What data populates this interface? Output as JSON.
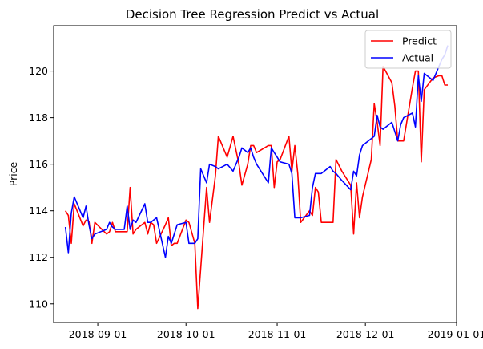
{
  "chart_data": {
    "type": "line",
    "title": "Decision Tree Regression Predict vs Actual",
    "xlabel": "",
    "ylabel": "Price",
    "x_start": "2018-08-21",
    "xlim": [
      "2018-08-17",
      "2019-01-01"
    ],
    "ylim": [
      109.2,
      121.95
    ],
    "x_ticks": [
      {
        "date": "2018-09-01",
        "label": "2018-09-01"
      },
      {
        "date": "2018-10-01",
        "label": "2018-10-01"
      },
      {
        "date": "2018-11-01",
        "label": "2018-11-01"
      },
      {
        "date": "2018-12-01",
        "label": "2018-12-01"
      },
      {
        "date": "2019-01-01",
        "label": "2019-01-01"
      }
    ],
    "y_ticks": [
      {
        "value": 110,
        "label": "110"
      },
      {
        "value": 112,
        "label": "112"
      },
      {
        "value": 114,
        "label": "114"
      },
      {
        "value": 116,
        "label": "116"
      },
      {
        "value": 118,
        "label": "118"
      },
      {
        "value": 120,
        "label": "120"
      }
    ],
    "grid": false,
    "legend_position": "top-right",
    "series": [
      {
        "name": "Predict",
        "color": "#ff0000",
        "points": [
          [
            "2018-08-21",
            114.0
          ],
          [
            "2018-08-22",
            113.8
          ],
          [
            "2018-08-23",
            112.6
          ],
          [
            "2018-08-24",
            114.3
          ],
          [
            "2018-08-27",
            113.35
          ],
          [
            "2018-08-28",
            113.6
          ],
          [
            "2018-08-29",
            113.55
          ],
          [
            "2018-08-30",
            112.6
          ],
          [
            "2018-08-31",
            113.5
          ],
          [
            "2018-09-04",
            113.0
          ],
          [
            "2018-09-05",
            113.1
          ],
          [
            "2018-09-06",
            113.5
          ],
          [
            "2018-09-07",
            113.1
          ],
          [
            "2018-09-10",
            113.1
          ],
          [
            "2018-09-11",
            113.1
          ],
          [
            "2018-09-12",
            115.0
          ],
          [
            "2018-09-13",
            113.0
          ],
          [
            "2018-09-14",
            113.2
          ],
          [
            "2018-09-17",
            113.5
          ],
          [
            "2018-09-18",
            113.0
          ],
          [
            "2018-09-19",
            113.5
          ],
          [
            "2018-09-20",
            113.4
          ],
          [
            "2018-09-21",
            112.6
          ],
          [
            "2018-09-24",
            113.4
          ],
          [
            "2018-09-25",
            113.7
          ],
          [
            "2018-09-26",
            112.5
          ],
          [
            "2018-09-27",
            112.6
          ],
          [
            "2018-09-28",
            112.6
          ],
          [
            "2018-10-01",
            113.6
          ],
          [
            "2018-10-02",
            113.5
          ],
          [
            "2018-10-04",
            112.6
          ],
          [
            "2018-10-05",
            109.8
          ],
          [
            "2018-10-08",
            115.0
          ],
          [
            "2018-10-09",
            113.5
          ],
          [
            "2018-10-11",
            115.5
          ],
          [
            "2018-10-12",
            117.2
          ],
          [
            "2018-10-15",
            116.3
          ],
          [
            "2018-10-17",
            117.2
          ],
          [
            "2018-10-19",
            116.0
          ],
          [
            "2018-10-20",
            115.1
          ],
          [
            "2018-10-22",
            116.0
          ],
          [
            "2018-10-23",
            116.8
          ],
          [
            "2018-10-24",
            116.8
          ],
          [
            "2018-10-25",
            116.5
          ],
          [
            "2018-10-29",
            116.8
          ],
          [
            "2018-10-30",
            116.8
          ],
          [
            "2018-10-31",
            115.0
          ],
          [
            "2018-11-01",
            116.1
          ],
          [
            "2018-11-02",
            116.2
          ],
          [
            "2018-11-05",
            117.2
          ],
          [
            "2018-11-06",
            115.7
          ],
          [
            "2018-11-07",
            116.8
          ],
          [
            "2018-11-08",
            115.6
          ],
          [
            "2018-11-09",
            113.5
          ],
          [
            "2018-11-12",
            114.0
          ],
          [
            "2018-11-13",
            113.8
          ],
          [
            "2018-11-14",
            115.0
          ],
          [
            "2018-11-15",
            114.8
          ],
          [
            "2018-11-16",
            113.5
          ],
          [
            "2018-11-19",
            113.5
          ],
          [
            "2018-11-20",
            113.5
          ],
          [
            "2018-11-21",
            116.2
          ],
          [
            "2018-11-23",
            115.7
          ],
          [
            "2018-11-26",
            115.1
          ],
          [
            "2018-11-27",
            113.0
          ],
          [
            "2018-11-28",
            115.2
          ],
          [
            "2018-11-29",
            113.7
          ],
          [
            "2018-11-30",
            114.6
          ],
          [
            "2018-12-03",
            116.2
          ],
          [
            "2018-12-04",
            118.6
          ],
          [
            "2018-12-05",
            117.8
          ],
          [
            "2018-12-06",
            116.8
          ],
          [
            "2018-12-07",
            120.2
          ],
          [
            "2018-12-10",
            119.5
          ],
          [
            "2018-12-11",
            118.5
          ],
          [
            "2018-12-12",
            117.0
          ],
          [
            "2018-12-13",
            117.0
          ],
          [
            "2018-12-14",
            117.0
          ],
          [
            "2018-12-17",
            119.3
          ],
          [
            "2018-12-18",
            120.0
          ],
          [
            "2018-12-19",
            120.0
          ],
          [
            "2018-12-20",
            116.1
          ],
          [
            "2018-12-21",
            119.2
          ],
          [
            "2018-12-24",
            119.7
          ],
          [
            "2018-12-26",
            119.8
          ],
          [
            "2018-12-27",
            119.8
          ],
          [
            "2018-12-28",
            119.4
          ],
          [
            "2018-12-29",
            119.4
          ]
        ]
      },
      {
        "name": "Actual",
        "color": "#0000ff",
        "points": [
          [
            "2018-08-21",
            113.3
          ],
          [
            "2018-08-22",
            112.2
          ],
          [
            "2018-08-23",
            113.9
          ],
          [
            "2018-08-24",
            114.6
          ],
          [
            "2018-08-27",
            113.7
          ],
          [
            "2018-08-28",
            114.2
          ],
          [
            "2018-08-29",
            113.4
          ],
          [
            "2018-08-30",
            112.8
          ],
          [
            "2018-08-31",
            113.0
          ],
          [
            "2018-09-04",
            113.2
          ],
          [
            "2018-09-05",
            113.5
          ],
          [
            "2018-09-06",
            113.3
          ],
          [
            "2018-09-07",
            113.2
          ],
          [
            "2018-09-10",
            113.2
          ],
          [
            "2018-09-11",
            114.2
          ],
          [
            "2018-09-12",
            113.2
          ],
          [
            "2018-09-13",
            113.6
          ],
          [
            "2018-09-14",
            113.5
          ],
          [
            "2018-09-17",
            114.3
          ],
          [
            "2018-09-18",
            113.5
          ],
          [
            "2018-09-19",
            113.5
          ],
          [
            "2018-09-20",
            113.6
          ],
          [
            "2018-09-21",
            113.7
          ],
          [
            "2018-09-24",
            112.0
          ],
          [
            "2018-09-25",
            112.9
          ],
          [
            "2018-09-26",
            112.6
          ],
          [
            "2018-09-27",
            113.0
          ],
          [
            "2018-09-28",
            113.4
          ],
          [
            "2018-10-01",
            113.5
          ],
          [
            "2018-10-02",
            112.6
          ],
          [
            "2018-10-04",
            112.6
          ],
          [
            "2018-10-05",
            112.8
          ],
          [
            "2018-10-06",
            115.8
          ],
          [
            "2018-10-08",
            115.2
          ],
          [
            "2018-10-09",
            116.0
          ],
          [
            "2018-10-11",
            115.9
          ],
          [
            "2018-10-12",
            115.8
          ],
          [
            "2018-10-15",
            116.0
          ],
          [
            "2018-10-17",
            115.7
          ],
          [
            "2018-10-19",
            116.3
          ],
          [
            "2018-10-20",
            116.7
          ],
          [
            "2018-10-22",
            116.5
          ],
          [
            "2018-10-23",
            116.7
          ],
          [
            "2018-10-24",
            116.3
          ],
          [
            "2018-10-25",
            116.0
          ],
          [
            "2018-10-29",
            115.2
          ],
          [
            "2018-10-30",
            116.7
          ],
          [
            "2018-10-31",
            116.5
          ],
          [
            "2018-11-01",
            116.3
          ],
          [
            "2018-11-02",
            116.1
          ],
          [
            "2018-11-05",
            116.0
          ],
          [
            "2018-11-06",
            115.6
          ],
          [
            "2018-11-07",
            113.7
          ],
          [
            "2018-11-08",
            113.7
          ],
          [
            "2018-11-09",
            113.7
          ],
          [
            "2018-11-12",
            113.8
          ],
          [
            "2018-11-13",
            115.0
          ],
          [
            "2018-11-14",
            115.6
          ],
          [
            "2018-11-15",
            115.6
          ],
          [
            "2018-11-16",
            115.6
          ],
          [
            "2018-11-19",
            115.9
          ],
          [
            "2018-11-20",
            115.7
          ],
          [
            "2018-11-21",
            115.6
          ],
          [
            "2018-11-23",
            115.3
          ],
          [
            "2018-11-26",
            114.9
          ],
          [
            "2018-11-27",
            115.7
          ],
          [
            "2018-11-28",
            115.5
          ],
          [
            "2018-11-29",
            116.4
          ],
          [
            "2018-11-30",
            116.8
          ],
          [
            "2018-12-03",
            117.1
          ],
          [
            "2018-12-04",
            117.2
          ],
          [
            "2018-12-05",
            118.1
          ],
          [
            "2018-12-06",
            117.6
          ],
          [
            "2018-12-07",
            117.5
          ],
          [
            "2018-12-10",
            117.8
          ],
          [
            "2018-12-11",
            117.4
          ],
          [
            "2018-12-12",
            117.0
          ],
          [
            "2018-12-13",
            117.7
          ],
          [
            "2018-12-14",
            118.0
          ],
          [
            "2018-12-17",
            118.2
          ],
          [
            "2018-12-18",
            117.6
          ],
          [
            "2018-12-19",
            119.8
          ],
          [
            "2018-12-20",
            118.7
          ],
          [
            "2018-12-21",
            119.9
          ],
          [
            "2018-12-24",
            119.6
          ],
          [
            "2018-12-26",
            120.2
          ],
          [
            "2018-12-27",
            120.5
          ],
          [
            "2018-12-28",
            120.7
          ],
          [
            "2018-12-29",
            121.1
          ]
        ]
      }
    ]
  }
}
